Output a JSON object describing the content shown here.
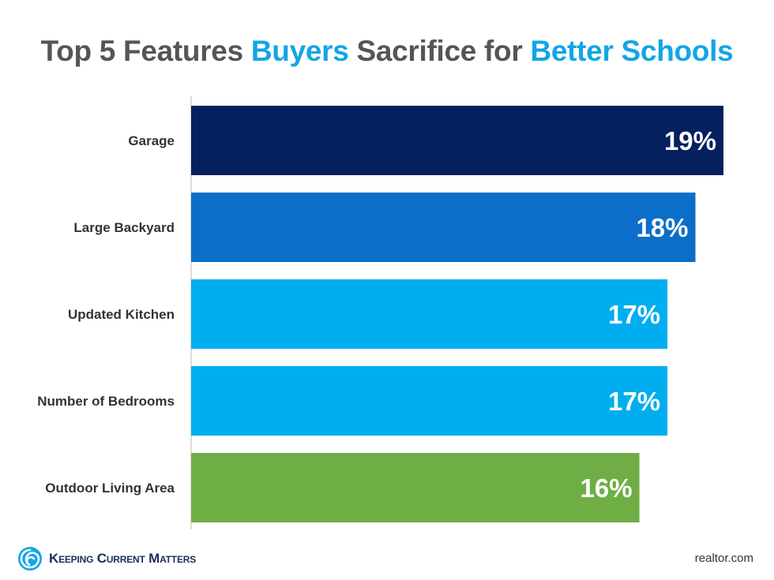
{
  "title": {
    "part1": "Top 5 Features ",
    "part2": "Buyers",
    "part3": " Sacrifice for ",
    "part4": "Better Schools"
  },
  "colors": {
    "title_gray": "#555555",
    "title_accent": "#12a6e4",
    "axis": "#c8c8c8",
    "bar_label": "#333333",
    "value_label": "#ffffff"
  },
  "chart_data": {
    "type": "bar",
    "orientation": "horizontal",
    "title": "Top 5 Features Buyers Sacrifice for Better Schools",
    "categories": [
      "Garage",
      "Large Backyard",
      "Updated Kitchen",
      "Number of Bedrooms",
      "Outdoor Living Area"
    ],
    "values": [
      19,
      18,
      17,
      17,
      16
    ],
    "value_labels": [
      "19%",
      "18%",
      "17%",
      "17%",
      "16%"
    ],
    "bar_colors": [
      "#04205f",
      "#0b6ec8",
      "#00aeef",
      "#00aeef",
      "#6fae45"
    ],
    "xlim": [
      0,
      19
    ],
    "grid": false,
    "legend": "none"
  },
  "footer": {
    "brand": "Keeping Current Matters",
    "source": "realtor.com"
  }
}
